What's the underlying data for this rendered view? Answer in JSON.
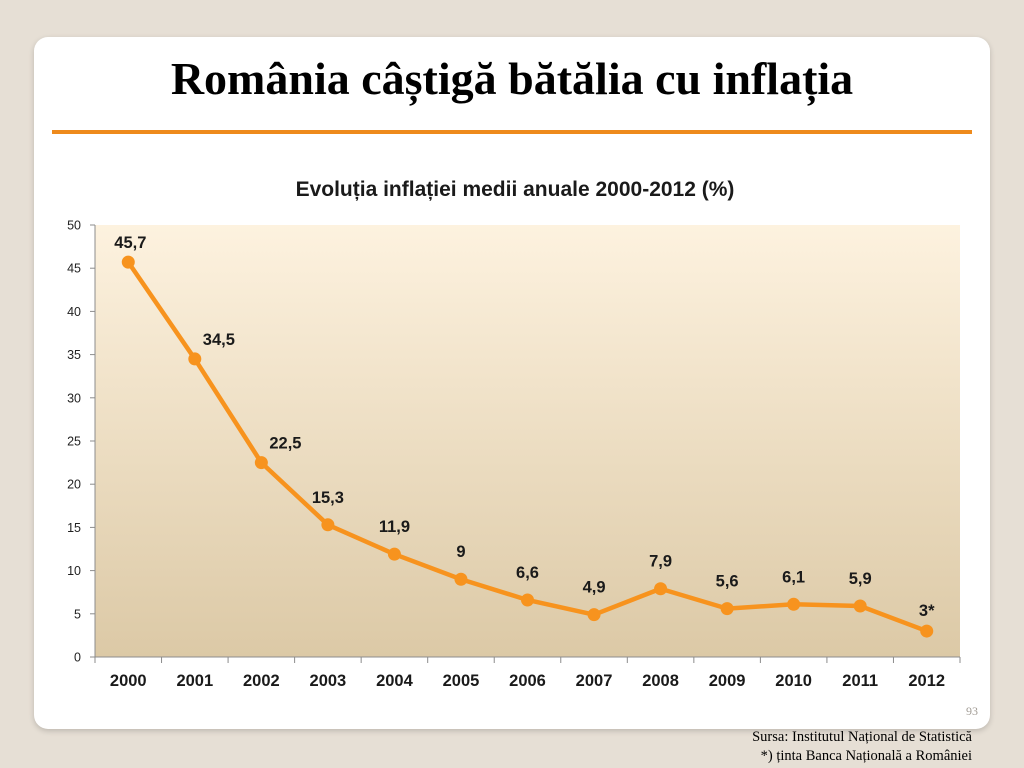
{
  "slide": {
    "title": "România câștigă bătălia cu inflația",
    "page_number": "93",
    "source_line1": "Sursa: Institutul Național de Statistică",
    "source_line2": "*) ținta Banca Națională a României"
  },
  "colors": {
    "accent": "#ee8a1c",
    "line": "#f7931e",
    "plot_bg_top": "#fdf2df",
    "plot_bg_bottom": "#dcc9a6"
  },
  "chart_data": {
    "type": "line",
    "title": "Evoluția inflației medii anuale 2000-2012 (%)",
    "categories": [
      "2000",
      "2001",
      "2002",
      "2003",
      "2004",
      "2005",
      "2006",
      "2007",
      "2008",
      "2009",
      "2010",
      "2011",
      "2012"
    ],
    "series": [
      {
        "values": [
          45.7,
          34.5,
          22.5,
          15.3,
          11.9,
          9,
          6.6,
          4.9,
          7.9,
          5.6,
          6.1,
          5.9,
          3
        ],
        "labels": [
          "45,7",
          "34,5",
          "22,5",
          "15,3",
          "11,9",
          "9",
          "6,6",
          "4,9",
          "7,9",
          "5,6",
          "6,1",
          "5,9",
          "3*"
        ]
      }
    ],
    "ylim": [
      0,
      50
    ],
    "yticks": [
      0,
      5,
      10,
      15,
      20,
      25,
      30,
      35,
      40,
      45,
      50
    ],
    "xlabel": "",
    "ylabel": "",
    "grid": false,
    "legend": "none"
  }
}
